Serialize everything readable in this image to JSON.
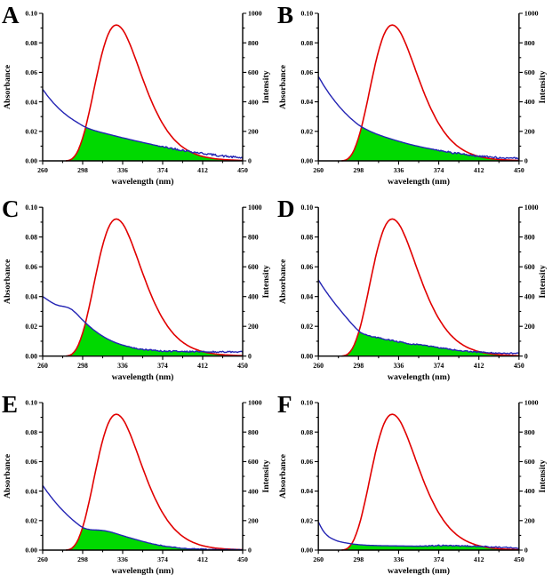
{
  "figure": {
    "description": "Six-panel spectral overlap figure: fluorescence emission spectrum (red, right axis) overlaid with UV-vis absorbance spectra (blue, left axis); green area marks the spectral overlap region",
    "panel_labels": [
      "A",
      "B",
      "C",
      "D",
      "E",
      "F"
    ]
  },
  "chart_data": {
    "type": "line",
    "axes": {
      "x": {
        "label": "wavelength (nm)",
        "min": 260,
        "max": 450,
        "major_values": [
          260,
          298,
          336,
          374,
          412,
          450
        ],
        "major_labels": [
          "260",
          "298",
          "336",
          "374",
          "412",
          "450"
        ],
        "minor_values": [
          279,
          317,
          355,
          393,
          431
        ]
      },
      "y_left": {
        "label": "Absorbance",
        "min": 0,
        "max": 0.1,
        "major_values": [
          0,
          0.02,
          0.04,
          0.06,
          0.08,
          0.1
        ],
        "major_labels": [
          "0.00",
          "0.02",
          "0.04",
          "0.06",
          "0.08",
          "0.10"
        ],
        "minor_values": [
          0.01,
          0.03,
          0.05,
          0.07,
          0.09
        ]
      },
      "y_right": {
        "label": "Intensity",
        "min": 0,
        "max": 1000,
        "major_values": [
          0,
          200,
          400,
          600,
          800,
          1000
        ],
        "major_labels": [
          "0",
          "200",
          "400",
          "600",
          "800",
          "1000"
        ],
        "minor_values": [
          100,
          300,
          500,
          700,
          900
        ]
      }
    },
    "colors": {
      "emission": "#e10000",
      "absorbance": "#2424b4",
      "overlap_fill": "#00d900",
      "axis": "#000000"
    },
    "emission": {
      "name": "fluorescence emission (right axis)",
      "x": [
        282,
        284,
        286,
        288,
        290,
        292,
        294,
        296,
        298,
        300,
        302,
        304,
        306,
        308,
        310,
        312,
        314,
        316,
        318,
        320,
        322,
        324,
        326,
        328,
        330,
        332,
        334,
        336,
        338,
        340,
        343,
        346,
        349,
        352,
        355,
        358,
        361,
        364,
        367,
        370,
        373,
        376,
        379,
        382,
        385,
        388,
        391,
        394,
        397,
        400,
        403,
        406,
        409,
        412,
        415,
        418,
        421,
        424,
        427,
        430,
        433,
        436,
        439,
        442,
        445,
        448,
        450
      ],
      "y": [
        0,
        2,
        6,
        14,
        28,
        48,
        76,
        112,
        155,
        205,
        262,
        324,
        390,
        458,
        527,
        594,
        658,
        717,
        770,
        816,
        854,
        884,
        905,
        917,
        921,
        917,
        906,
        889,
        866,
        838,
        789,
        734,
        676,
        616,
        557,
        500,
        445,
        394,
        347,
        304,
        264,
        229,
        197,
        169,
        144,
        123,
        104,
        88,
        74,
        62,
        52,
        44,
        36,
        30,
        25,
        21,
        17,
        14,
        12,
        10,
        8,
        7,
        6,
        5,
        4,
        3,
        3
      ]
    },
    "panels": [
      {
        "label": "A",
        "absorbance": {
          "x": [
            260,
            265,
            270,
            275,
            280,
            285,
            290,
            295,
            298,
            302,
            306,
            310,
            315,
            320,
            325,
            330,
            335,
            340,
            345,
            350,
            355,
            360,
            365,
            370,
            375,
            380,
            385,
            390,
            395,
            400,
            405,
            410,
            415,
            420,
            425,
            430,
            435,
            440,
            445,
            450
          ],
          "y": [
            0.0485,
            0.0437,
            0.0394,
            0.0357,
            0.0325,
            0.0297,
            0.0273,
            0.0251,
            0.0238,
            0.0224,
            0.0213,
            0.0204,
            0.0194,
            0.0185,
            0.0176,
            0.0167,
            0.0158,
            0.015,
            0.0141,
            0.0133,
            0.0125,
            0.0117,
            0.0109,
            0.0101,
            0.0094,
            0.0088,
            0.0082,
            0.0076,
            0.007,
            0.0064,
            0.0058,
            0.0053,
            0.0048,
            0.0043,
            0.0038,
            0.0034,
            0.003,
            0.0026,
            0.0023,
            0.002
          ]
        },
        "noise_start": 366,
        "noise_amp": 0.0007
      },
      {
        "label": "B",
        "absorbance": {
          "x": [
            260,
            265,
            270,
            275,
            280,
            285,
            290,
            295,
            298,
            302,
            306,
            310,
            315,
            320,
            325,
            330,
            335,
            340,
            345,
            350,
            355,
            360,
            365,
            370,
            375,
            380,
            385,
            390,
            395,
            400,
            405,
            410,
            415,
            420,
            425,
            430,
            435,
            440,
            445,
            450
          ],
          "y": [
            0.0572,
            0.0512,
            0.0458,
            0.041,
            0.0366,
            0.0327,
            0.0292,
            0.0261,
            0.0244,
            0.0226,
            0.0211,
            0.0197,
            0.0182,
            0.0169,
            0.0157,
            0.0146,
            0.0135,
            0.0125,
            0.0115,
            0.0106,
            0.0098,
            0.009,
            0.0083,
            0.0076,
            0.0069,
            0.0063,
            0.0057,
            0.0052,
            0.0047,
            0.0042,
            0.0038,
            0.0034,
            0.003,
            0.0027,
            0.0024,
            0.0022,
            0.002,
            0.0018,
            0.0017,
            0.0016
          ]
        },
        "noise_start": 366,
        "noise_amp": 0.0006
      },
      {
        "label": "C",
        "absorbance": {
          "x": [
            260,
            264,
            268,
            272,
            276,
            280,
            284,
            288,
            292,
            296,
            300,
            304,
            308,
            312,
            316,
            320,
            325,
            330,
            335,
            340,
            345,
            350,
            355,
            360,
            365,
            370,
            375,
            380,
            385,
            390,
            395,
            400,
            410,
            420,
            430,
            440,
            450
          ],
          "y": [
            0.04,
            0.0381,
            0.0362,
            0.0347,
            0.0338,
            0.0333,
            0.0326,
            0.0311,
            0.0286,
            0.0256,
            0.0228,
            0.0202,
            0.0178,
            0.0157,
            0.0138,
            0.0121,
            0.0103,
            0.0088,
            0.0076,
            0.0066,
            0.0058,
            0.0051,
            0.0046,
            0.0042,
            0.0039,
            0.0036,
            0.0034,
            0.0033,
            0.0032,
            0.0031,
            0.003,
            0.003,
            0.0029,
            0.0029,
            0.0028,
            0.0028,
            0.0028
          ]
        },
        "noise_start": 338,
        "noise_amp": 0.0005
      },
      {
        "label": "D",
        "absorbance": {
          "x": [
            260,
            263,
            266,
            270,
            274,
            278,
            282,
            286,
            290,
            293,
            296,
            298,
            300,
            303,
            306,
            310,
            315,
            320,
            325,
            330,
            335,
            340,
            345,
            350,
            355,
            358,
            362,
            366,
            370,
            374,
            378,
            382,
            386,
            390,
            395,
            400,
            405,
            410,
            415,
            420,
            425,
            430,
            435,
            440,
            445,
            450
          ],
          "y": [
            0.0512,
            0.0478,
            0.0446,
            0.0406,
            0.0368,
            0.0332,
            0.0297,
            0.0263,
            0.023,
            0.0206,
            0.0184,
            0.017,
            0.0158,
            0.0148,
            0.0141,
            0.0133,
            0.0125,
            0.0118,
            0.0111,
            0.0104,
            0.0097,
            0.009,
            0.0084,
            0.0079,
            0.0076,
            0.0075,
            0.0071,
            0.0066,
            0.0061,
            0.0056,
            0.0052,
            0.0048,
            0.0044,
            0.0041,
            0.0037,
            0.0033,
            0.003,
            0.0027,
            0.0025,
            0.0023,
            0.0022,
            0.0021,
            0.002,
            0.0019,
            0.0019,
            0.0018
          ]
        },
        "noise_start": 300,
        "noise_amp": 0.0004
      },
      {
        "label": "E",
        "absorbance": {
          "x": [
            260,
            264,
            268,
            272,
            276,
            280,
            284,
            288,
            292,
            296,
            299,
            302,
            305,
            308,
            312,
            316,
            320,
            324,
            328,
            332,
            336,
            340,
            345,
            350,
            355,
            360,
            365,
            370,
            375,
            380,
            385,
            390,
            395,
            400,
            410,
            420,
            430,
            440,
            450
          ],
          "y": [
            0.0438,
            0.0398,
            0.036,
            0.0325,
            0.0292,
            0.0262,
            0.0234,
            0.0208,
            0.0184,
            0.0162,
            0.015,
            0.0143,
            0.0139,
            0.0137,
            0.0136,
            0.0134,
            0.013,
            0.0124,
            0.0116,
            0.0107,
            0.0098,
            0.0089,
            0.0079,
            0.0069,
            0.0059,
            0.005,
            0.0042,
            0.0035,
            0.0029,
            0.0023,
            0.0019,
            0.0015,
            0.0012,
            0.001,
            0.0007,
            0.0005,
            0.0004,
            0.0003,
            0.0002
          ]
        },
        "noise_start": 358,
        "noise_amp": 0.00025
      },
      {
        "label": "F",
        "absorbance": {
          "x": [
            260,
            262,
            264,
            266,
            268,
            270,
            272,
            274,
            276,
            278,
            280,
            283,
            286,
            290,
            294,
            298,
            302,
            306,
            310,
            315,
            320,
            330,
            340,
            350,
            360,
            368,
            374,
            380,
            386,
            392,
            398,
            404,
            410,
            416,
            422,
            428,
            434,
            440,
            445,
            450
          ],
          "y": [
            0.0192,
            0.0162,
            0.0137,
            0.0117,
            0.0102,
            0.009,
            0.0081,
            0.0074,
            0.0068,
            0.0062,
            0.0058,
            0.0053,
            0.0049,
            0.0044,
            0.004,
            0.0037,
            0.0035,
            0.0033,
            0.0032,
            0.0031,
            0.003,
            0.0029,
            0.0028,
            0.0027,
            0.0027,
            0.0029,
            0.0031,
            0.0031,
            0.003,
            0.0029,
            0.0028,
            0.0027,
            0.0026,
            0.0024,
            0.0022,
            0.0021,
            0.0019,
            0.0017,
            0.0015,
            0.0013
          ]
        },
        "noise_start": 352,
        "noise_amp": 0.0004
      }
    ]
  }
}
